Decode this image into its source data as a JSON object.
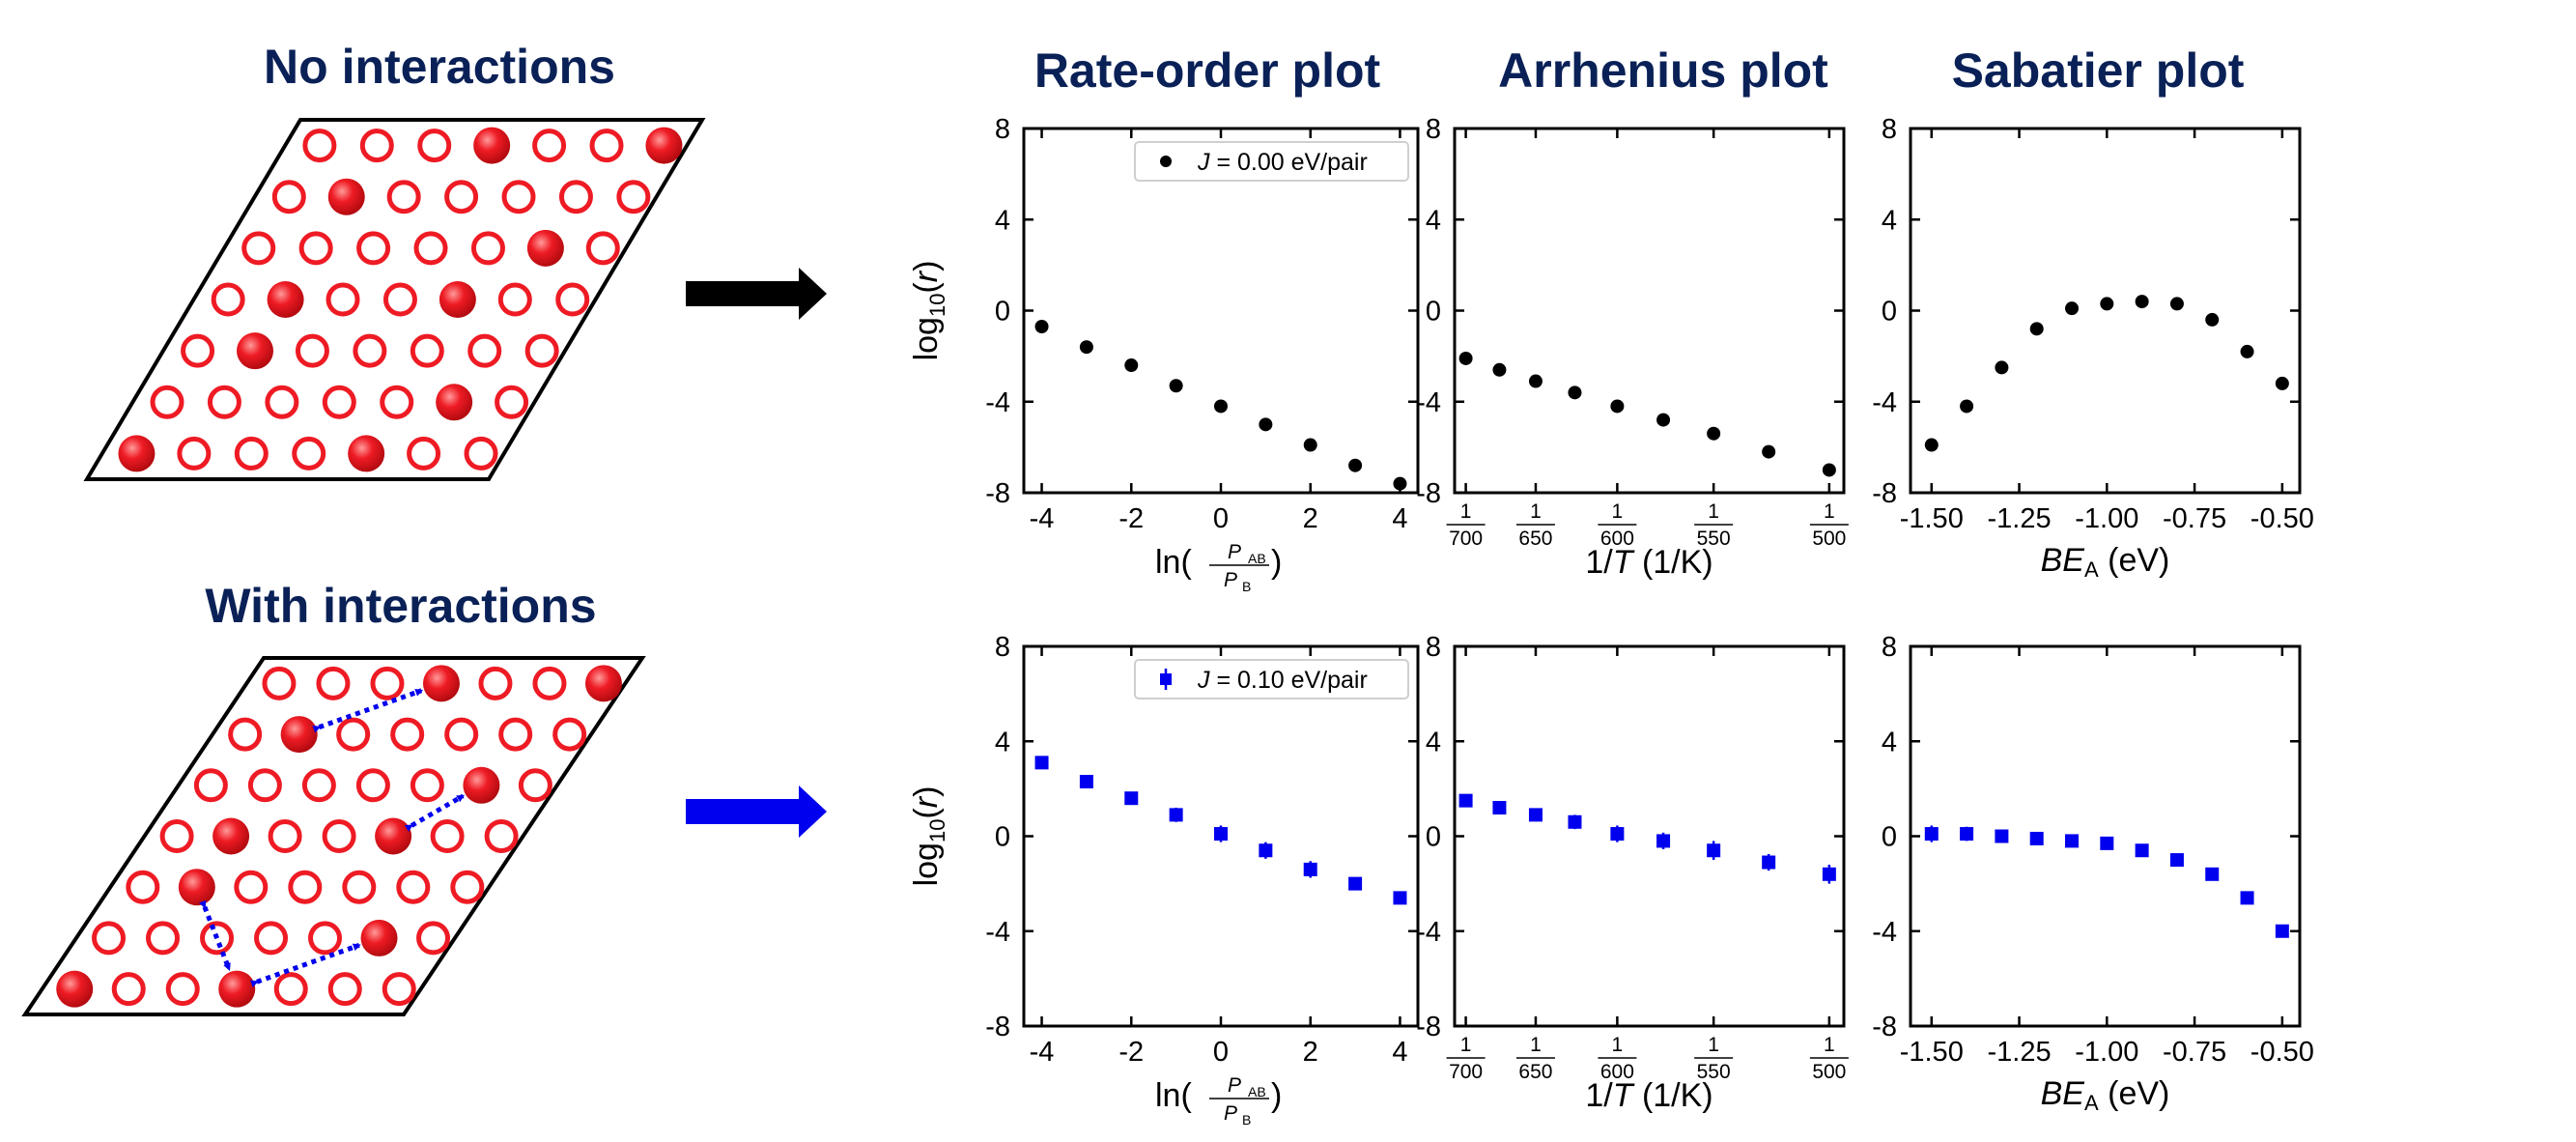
{
  "headings": {
    "no_interactions": "No interactions",
    "with_interactions": "With interactions",
    "rate_order": "Rate-order plot",
    "arrhenius": "Arrhenius plot",
    "sabatier": "Sabatier plot"
  },
  "colors": {
    "heading": "#0a2157",
    "site": "#ee1b24",
    "arrow_top": "#000000",
    "arrow_bottom": "#0000ee",
    "series_top": "#000000",
    "series_bottom": "#0000ee"
  },
  "lattices": [
    {
      "name": "no-interactions",
      "rows": [
        [
          0,
          0,
          0,
          1,
          0,
          0,
          1
        ],
        [
          0,
          1,
          0,
          0,
          0,
          0,
          0
        ],
        [
          0,
          0,
          0,
          0,
          0,
          1,
          0
        ],
        [
          0,
          1,
          0,
          0,
          1,
          0,
          0
        ],
        [
          0,
          1,
          0,
          0,
          0,
          0,
          0
        ],
        [
          0,
          0,
          0,
          0,
          0,
          1,
          0
        ],
        [
          1,
          0,
          0,
          0,
          1,
          0,
          0
        ]
      ]
    },
    {
      "name": "with-interactions",
      "rows": [
        [
          0,
          0,
          0,
          1,
          0,
          0,
          1
        ],
        [
          0,
          1,
          0,
          0,
          0,
          0,
          0
        ],
        [
          0,
          0,
          0,
          0,
          0,
          1,
          0
        ],
        [
          0,
          1,
          0,
          0,
          1,
          0,
          0
        ],
        [
          0,
          1,
          0,
          0,
          0,
          0,
          0
        ],
        [
          0,
          0,
          0,
          0,
          0,
          1,
          0
        ],
        [
          1,
          0,
          0,
          1,
          0,
          0,
          0
        ]
      ]
    }
  ],
  "chart_data": [
    {
      "type": "scatter",
      "panel": "rate-order-top",
      "ylabel": "log10(r)",
      "xlabel": "ln(P_AB/P_B)",
      "xlim": [
        -4.4,
        4.4
      ],
      "ylim": [
        -8,
        8
      ],
      "xticks": [
        -4,
        -2,
        0,
        2,
        4
      ],
      "xtick_labels": [
        "-4",
        "-2",
        "0",
        "2",
        "4"
      ],
      "yticks": [
        8,
        4,
        0,
        -4,
        -8
      ],
      "ytick_labels": [
        "8",
        "4",
        "0",
        "-4",
        "-8"
      ],
      "legend": "J = 0.00 eV/pair",
      "legend_position": "top-right",
      "series": [
        {
          "name": "J = 0.00 eV/pair",
          "color": "#000000",
          "marker": "circle",
          "x": [
            -4,
            -3,
            -2,
            -1,
            0,
            1,
            2,
            3,
            4
          ],
          "y": [
            -0.7,
            -1.6,
            -2.4,
            -3.3,
            -4.2,
            -5.0,
            -5.9,
            -6.8,
            -7.6
          ]
        }
      ]
    },
    {
      "type": "scatter",
      "panel": "arrhenius-top",
      "xlabel": "1/T (1/K)",
      "xlim": [
        0.001411,
        0.002023
      ],
      "ylim": [
        -8,
        8
      ],
      "xticks": [
        0.0014286,
        0.0015385,
        0.0016667,
        0.0018182,
        0.002
      ],
      "xtick_labels": [
        "1/700",
        "1/650",
        "1/600",
        "1/550",
        "1/500"
      ],
      "yticks": [
        8,
        4,
        0,
        -4,
        -8
      ],
      "ytick_labels": [
        "8",
        "4",
        "0",
        "-4",
        "-8"
      ],
      "series": [
        {
          "color": "#000000",
          "marker": "circle",
          "x": [
            0.0014286,
            0.0014815,
            0.0015385,
            0.0016,
            0.0016667,
            0.0017391,
            0.0018182,
            0.0019048,
            0.002
          ],
          "y": [
            -2.1,
            -2.6,
            -3.1,
            -3.6,
            -4.2,
            -4.8,
            -5.4,
            -6.2,
            -7.0
          ]
        }
      ]
    },
    {
      "type": "scatter",
      "panel": "sabatier-top",
      "xlabel": "BE_A (eV)",
      "xlim": [
        -1.56,
        -0.45
      ],
      "ylim": [
        -8,
        8
      ],
      "xticks": [
        -1.5,
        -1.25,
        -1.0,
        -0.75,
        -0.5
      ],
      "xtick_labels": [
        "-1.50",
        "-1.25",
        "-1.00",
        "-0.75",
        "-0.50"
      ],
      "yticks": [
        8,
        4,
        0,
        -4,
        -8
      ],
      "ytick_labels": [
        "8",
        "4",
        "0",
        "-4",
        "-8"
      ],
      "series": [
        {
          "color": "#000000",
          "marker": "circle",
          "x": [
            -1.5,
            -1.4,
            -1.3,
            -1.2,
            -1.1,
            -1.0,
            -0.9,
            -0.8,
            -0.7,
            -0.6,
            -0.5
          ],
          "y": [
            -5.9,
            -4.2,
            -2.5,
            -0.8,
            0.1,
            0.3,
            0.4,
            0.3,
            -0.4,
            -1.8,
            -3.2
          ]
        }
      ]
    },
    {
      "type": "scatter",
      "panel": "rate-order-bottom",
      "ylabel": "log10(r)",
      "xlabel": "ln(P_AB/P_B)",
      "xlim": [
        -4.4,
        4.4
      ],
      "ylim": [
        -8,
        8
      ],
      "xticks": [
        -4,
        -2,
        0,
        2,
        4
      ],
      "xtick_labels": [
        "-4",
        "-2",
        "0",
        "2",
        "4"
      ],
      "yticks": [
        8,
        4,
        0,
        -4,
        -8
      ],
      "ytick_labels": [
        "8",
        "4",
        "0",
        "-4",
        "-8"
      ],
      "legend": "J = 0.10 eV/pair",
      "legend_position": "top-right",
      "series": [
        {
          "name": "J = 0.10 eV/pair",
          "color": "#0000ee",
          "marker": "square",
          "x": [
            -4,
            -3,
            -2,
            -1,
            0,
            1,
            2,
            3,
            4
          ],
          "y": [
            3.1,
            2.3,
            1.6,
            0.9,
            0.1,
            -0.6,
            -1.4,
            -2.0,
            -2.6
          ],
          "err": [
            0.2,
            0.2,
            0.25,
            0.3,
            0.35,
            0.35,
            0.35,
            0.2,
            0.2
          ]
        }
      ]
    },
    {
      "type": "scatter",
      "panel": "arrhenius-bottom",
      "xlabel": "1/T (1/K)",
      "xlim": [
        0.001411,
        0.002023
      ],
      "ylim": [
        -8,
        8
      ],
      "xticks": [
        0.0014286,
        0.0015385,
        0.0016667,
        0.0018182,
        0.002
      ],
      "xtick_labels": [
        "1/700",
        "1/650",
        "1/600",
        "1/550",
        "1/500"
      ],
      "yticks": [
        8,
        4,
        0,
        -4,
        -8
      ],
      "ytick_labels": [
        "8",
        "4",
        "0",
        "-4",
        "-8"
      ],
      "series": [
        {
          "color": "#0000ee",
          "marker": "square",
          "x": [
            0.0014286,
            0.0014815,
            0.0015385,
            0.0016,
            0.0016667,
            0.0017391,
            0.0018182,
            0.0019048,
            0.002
          ],
          "y": [
            1.5,
            1.2,
            0.9,
            0.6,
            0.1,
            -0.2,
            -0.6,
            -1.1,
            -1.6
          ],
          "err": [
            0.2,
            0.2,
            0.2,
            0.3,
            0.35,
            0.35,
            0.4,
            0.35,
            0.4
          ]
        }
      ]
    },
    {
      "type": "scatter",
      "panel": "sabatier-bottom",
      "xlabel": "BE_A (eV)",
      "xlim": [
        -1.56,
        -0.45
      ],
      "ylim": [
        -8,
        8
      ],
      "xticks": [
        -1.5,
        -1.25,
        -1.0,
        -0.75,
        -0.5
      ],
      "xtick_labels": [
        "-1.50",
        "-1.25",
        "-1.00",
        "-0.75",
        "-0.50"
      ],
      "yticks": [
        8,
        4,
        0,
        -4,
        -8
      ],
      "ytick_labels": [
        "8",
        "4",
        "0",
        "-4",
        "-8"
      ],
      "series": [
        {
          "color": "#0000ee",
          "marker": "square",
          "x": [
            -1.5,
            -1.4,
            -1.3,
            -1.2,
            -1.1,
            -1.0,
            -0.9,
            -0.8,
            -0.7,
            -0.6,
            -0.5
          ],
          "y": [
            0.1,
            0.1,
            0.0,
            -0.1,
            -0.2,
            -0.3,
            -0.6,
            -1.0,
            -1.6,
            -2.6,
            -4.0
          ],
          "err": [
            0.35,
            0.3,
            0.2,
            0.2,
            0.2,
            0.2,
            0.2,
            0.2,
            0.2,
            0.2,
            0.2
          ]
        }
      ]
    }
  ]
}
